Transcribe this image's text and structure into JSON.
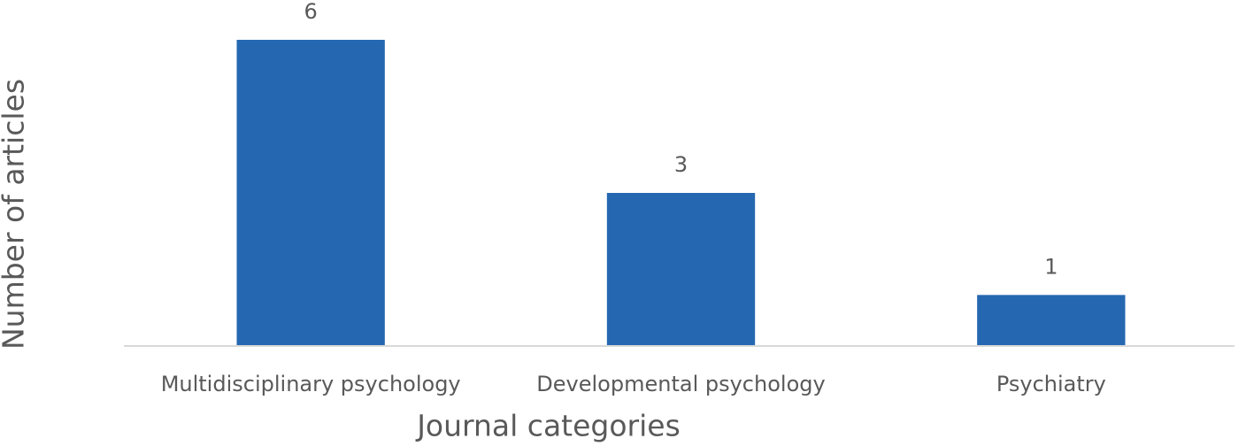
{
  "chart_data": {
    "type": "bar",
    "categories": [
      "Multidisciplinary psychology",
      "Developmental psychology",
      "Psychiatry"
    ],
    "values": [
      6,
      3,
      1
    ],
    "color": "#2568b1",
    "ylim": [
      0,
      6
    ],
    "x_label": "Journal categories",
    "y_label": "Number of articles"
  }
}
